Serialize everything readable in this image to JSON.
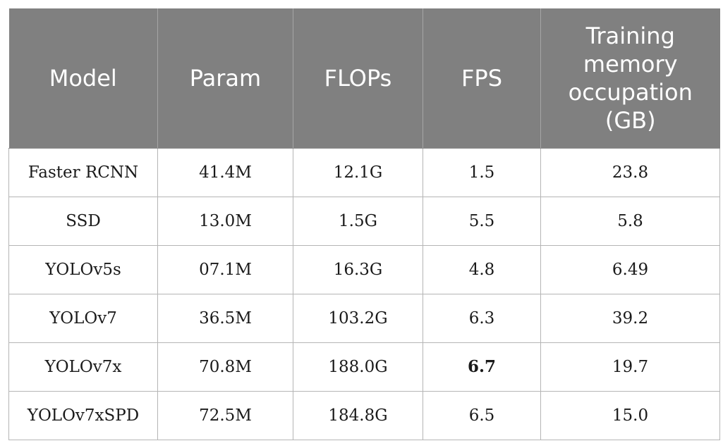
{
  "table": {
    "headers": [
      "Model",
      "Param",
      "FLOPs",
      "FPS",
      "Training memory occupation (GB)"
    ],
    "rows": [
      [
        "Faster RCNN",
        "41.4M",
        "12.1G",
        "1.5",
        "23.8"
      ],
      [
        "SSD",
        "13.0M",
        "1.5G",
        "5.5",
        "5.8"
      ],
      [
        "YOLOv5s",
        "07.1M",
        "16.3G",
        "4.8",
        "6.49"
      ],
      [
        "YOLOv7",
        "36.5M",
        "103.2G",
        "6.3",
        "39.2"
      ],
      [
        "YOLOv7x",
        "70.8M",
        "188.0G",
        "6.7",
        "19.7"
      ],
      [
        "YOLOv7xSPD",
        "72.5M",
        "184.8G",
        "6.5",
        "15.0"
      ]
    ],
    "bold_cells": [
      [
        4,
        3
      ]
    ]
  }
}
